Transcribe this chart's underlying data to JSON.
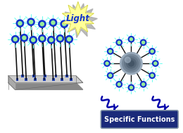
{
  "bg_color": "#ffffff",
  "light_label": "Light",
  "specific_functions_label": "Specific Functions",
  "film_base_color": "#aaaaaa",
  "film_base_dark": "#888888",
  "film_base_light": "#cccccc",
  "stem_color": "#111111",
  "small_ball_outer_color": "#1133cc",
  "small_ball_inner_color": "#99ee99",
  "ray_color": "#66ffee",
  "wave_color": "#0000aa",
  "burst_shadow": "#aaaaaa",
  "burst_inner": "#ffff99",
  "burst_edge": "#cccc44",
  "burst_text_color": "#1133cc",
  "sf_box_face": "#1a2a7a",
  "sf_box_edge": "#8899aa",
  "sf_text_color": "#ffffff",
  "np_colors": [
    "#99aabb",
    "#778899",
    "#667788",
    "#556677",
    "#445566"
  ],
  "np_highlight": "#aabbcc",
  "arm_color": "#111111"
}
